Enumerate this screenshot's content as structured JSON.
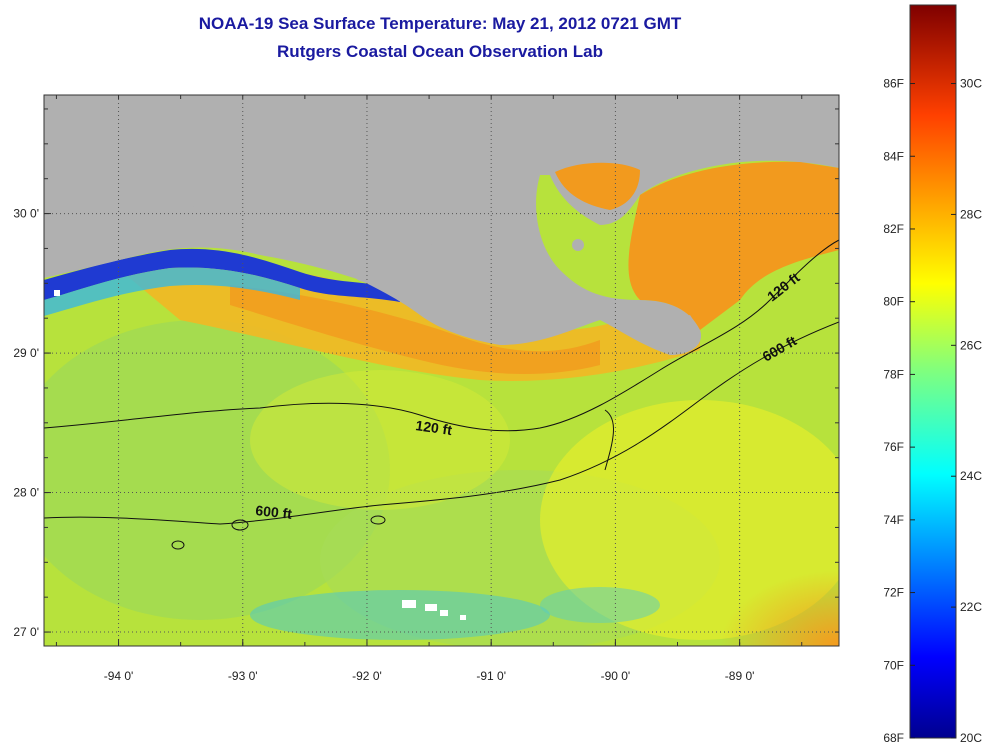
{
  "title": {
    "line1": "NOAA-19 Sea Surface Temperature:  May 21, 2012 0721 GMT",
    "line2": "Rutgers Coastal Ocean Observation Lab"
  },
  "map": {
    "lon_range": [
      -94.6,
      -88.2
    ],
    "lat_range": [
      26.9,
      30.85
    ],
    "lon_ticks": [
      {
        "value": -94,
        "label": "-94 0'"
      },
      {
        "value": -93,
        "label": "-93 0'"
      },
      {
        "value": -92,
        "label": "-92 0'"
      },
      {
        "value": -91,
        "label": "-91 0'"
      },
      {
        "value": -90,
        "label": "-90 0'"
      },
      {
        "value": -89,
        "label": "-89 0'"
      }
    ],
    "lat_ticks": [
      {
        "value": 30,
        "label": "30 0'"
      },
      {
        "value": 29,
        "label": "29 0'"
      },
      {
        "value": 28,
        "label": "28 0'"
      },
      {
        "value": 27,
        "label": "27 0'"
      }
    ],
    "contour_labels": [
      {
        "text": "120 ft"
      },
      {
        "text": "600 ft"
      },
      {
        "text": "120 ft"
      },
      {
        "text": "600 ft"
      }
    ],
    "colors": {
      "land": "#b0b0b0",
      "sea_base": "#b7e23c",
      "warm": "#f5a623",
      "cool": "#4ac8d8",
      "cold": "#1a2fd0"
    }
  },
  "colorbar": {
    "range_c": [
      20,
      31.2
    ],
    "fahrenheit_labels": [
      "86F",
      "84F",
      "82F",
      "80F",
      "78F",
      "76F",
      "74F",
      "72F",
      "70F",
      "68F"
    ],
    "celsius_labels": [
      "30C",
      "28C",
      "26C",
      "24C",
      "22C",
      "20C"
    ]
  }
}
